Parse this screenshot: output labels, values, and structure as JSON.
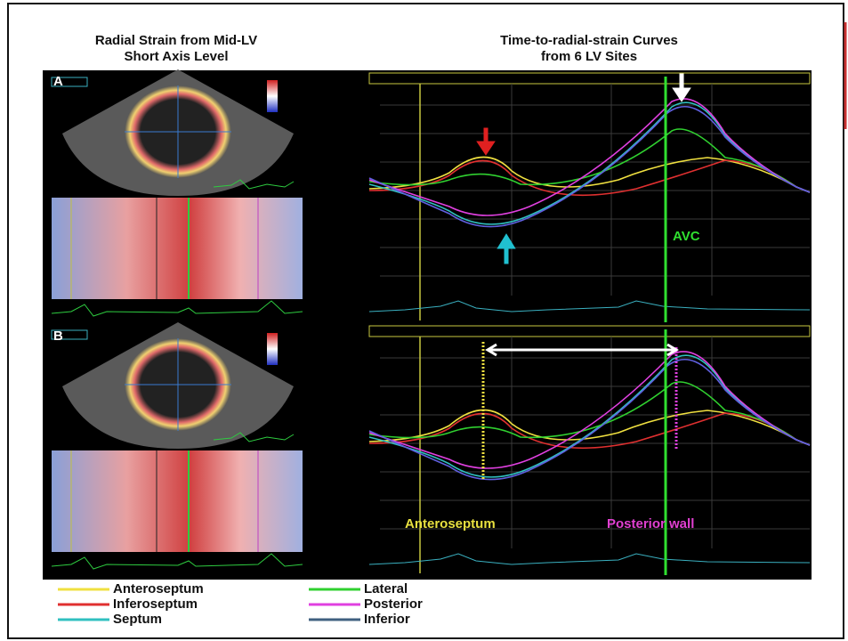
{
  "header": {
    "left_title": [
      "Radial Strain from Mid-LV",
      "Short Axis Level"
    ],
    "right_title": [
      "Time-to-radial-strain  Curves",
      "from 6 LV Sites"
    ]
  },
  "panels": [
    {
      "label": "A",
      "annotation": "AVC"
    },
    {
      "label": "B",
      "annotations": [
        "Anteroseptum",
        "Posterior wall"
      ]
    }
  ],
  "legend": [
    {
      "name": "Anteroseptum",
      "color": "#f0e040"
    },
    {
      "name": "Inferoseptum",
      "color": "#e03030"
    },
    {
      "name": "Septum",
      "color": "#30c0c0"
    },
    {
      "name": "Lateral",
      "color": "#30d030"
    },
    {
      "name": "Posterior",
      "color": "#e040e0"
    },
    {
      "name": "Inferior",
      "color": "#406080"
    }
  ]
}
